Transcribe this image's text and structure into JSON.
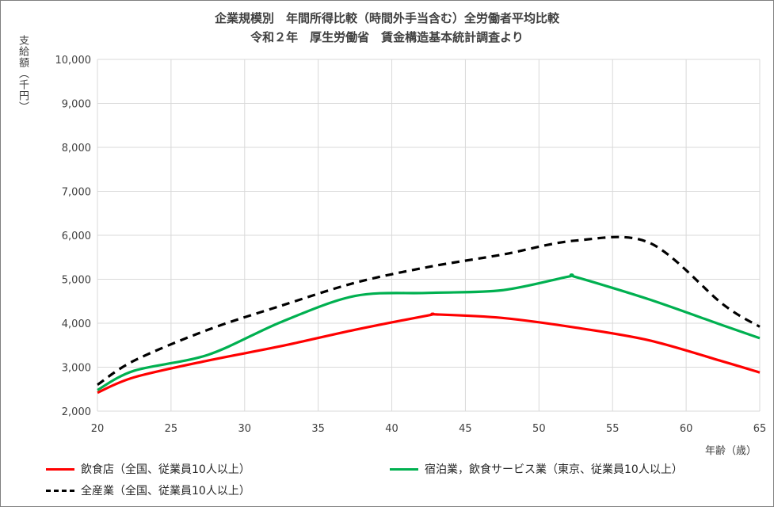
{
  "chart_data": {
    "type": "line",
    "title": "企業規模別　年間所得比較（時間外手当含む）全労働者平均比較",
    "subtitle": "令和２年　厚生労働省　賃金構造基本統計調査より",
    "ylabel": "支給額（千円）",
    "xlabel": "年齢（歳）",
    "xlim": [
      20,
      65
    ],
    "ylim": [
      2000,
      10000
    ],
    "x_ticks": [
      "20",
      "25",
      "30",
      "35",
      "40",
      "45",
      "50",
      "55",
      "60",
      "65"
    ],
    "y_ticks": [
      "2,000",
      "3,000",
      "4,000",
      "5,000",
      "6,000",
      "7,000",
      "8,000",
      "9,000",
      "10,000"
    ],
    "grid": true,
    "legend_position": "bottom",
    "series": [
      {
        "name": "飲食店（全国、従業員10人以上）",
        "color": "#ff0000",
        "style": "solid",
        "x": [
          20,
          22.5,
          27.5,
          32.5,
          37.5,
          42.5,
          43,
          47.5,
          52.5,
          57.5,
          62.5,
          65
        ],
        "y": [
          2420,
          2770,
          3150,
          3480,
          3850,
          4180,
          4200,
          4120,
          3900,
          3610,
          3130,
          2880
        ]
      },
      {
        "name": "宿泊業，飲食サービス業（東京、従業員10人以上）",
        "color": "#00b050",
        "style": "solid",
        "x": [
          20,
          22.5,
          27.5,
          32.5,
          37.5,
          42.5,
          47.5,
          52,
          52.5,
          57.5,
          62.5,
          65
        ],
        "y": [
          2480,
          2920,
          3280,
          4030,
          4620,
          4690,
          4750,
          5060,
          5050,
          4540,
          3950,
          3660
        ]
      },
      {
        "name": "全産業（全国、従業員10人以上）",
        "color": "#000000",
        "style": "dashed",
        "x": [
          20,
          22.5,
          27.5,
          32.5,
          37.5,
          42.5,
          47.5,
          52.5,
          57.5,
          62.5,
          65
        ],
        "y": [
          2600,
          3150,
          3850,
          4400,
          4920,
          5280,
          5560,
          5880,
          5830,
          4430,
          3920
        ]
      }
    ]
  }
}
